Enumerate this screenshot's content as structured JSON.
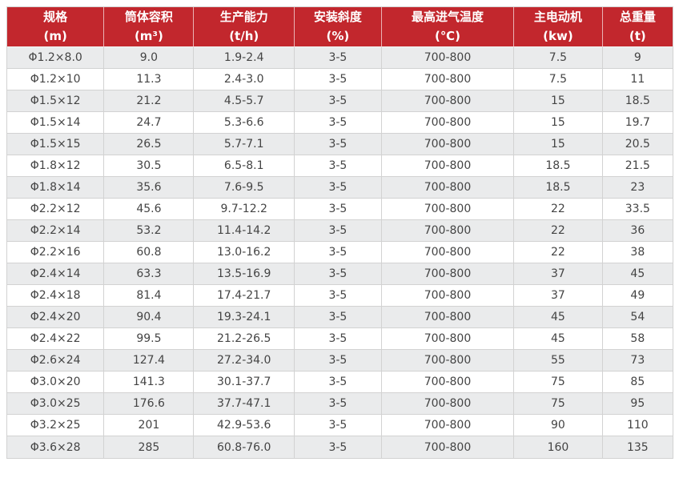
{
  "chart_data": {
    "type": "table",
    "title": "",
    "colors": {
      "header_bg": "#c2272d",
      "header_text": "#ffffff",
      "stripe_bg": "#eaebec",
      "row_bg": "#ffffff",
      "grid": "#d2d2d2",
      "body_text": "#444444"
    },
    "columns": [
      {
        "label": "规格",
        "unit": "(m)"
      },
      {
        "label": "筒体容积",
        "unit": "(m³)"
      },
      {
        "label": "生产能力",
        "unit": "(t/h)"
      },
      {
        "label": "安装斜度",
        "unit": "(%)"
      },
      {
        "label": "最高进气温度",
        "unit": "(℃)"
      },
      {
        "label": "主电动机",
        "unit": "(kw)"
      },
      {
        "label": "总重量",
        "unit": "(t)"
      }
    ],
    "rows": [
      [
        "Φ1.2×8.0",
        "9.0",
        "1.9-2.4",
        "3-5",
        "700-800",
        "7.5",
        "9"
      ],
      [
        "Φ1.2×10",
        "11.3",
        "2.4-3.0",
        "3-5",
        "700-800",
        "7.5",
        "11"
      ],
      [
        "Φ1.5×12",
        "21.2",
        "4.5-5.7",
        "3-5",
        "700-800",
        "15",
        "18.5"
      ],
      [
        "Φ1.5×14",
        "24.7",
        "5.3-6.6",
        "3-5",
        "700-800",
        "15",
        "19.7"
      ],
      [
        "Φ1.5×15",
        "26.5",
        "5.7-7.1",
        "3-5",
        "700-800",
        "15",
        "20.5"
      ],
      [
        "Φ1.8×12",
        "30.5",
        "6.5-8.1",
        "3-5",
        "700-800",
        "18.5",
        "21.5"
      ],
      [
        "Φ1.8×14",
        "35.6",
        "7.6-9.5",
        "3-5",
        "700-800",
        "18.5",
        "23"
      ],
      [
        "Φ2.2×12",
        "45.6",
        "9.7-12.2",
        "3-5",
        "700-800",
        "22",
        "33.5"
      ],
      [
        "Φ2.2×14",
        "53.2",
        "11.4-14.2",
        "3-5",
        "700-800",
        "22",
        "36"
      ],
      [
        "Φ2.2×16",
        "60.8",
        "13.0-16.2",
        "3-5",
        "700-800",
        "22",
        "38"
      ],
      [
        "Φ2.4×14",
        "63.3",
        "13.5-16.9",
        "3-5",
        "700-800",
        "37",
        "45"
      ],
      [
        "Φ2.4×18",
        "81.4",
        "17.4-21.7",
        "3-5",
        "700-800",
        "37",
        "49"
      ],
      [
        "Φ2.4×20",
        "90.4",
        "19.3-24.1",
        "3-5",
        "700-800",
        "45",
        "54"
      ],
      [
        "Φ2.4×22",
        "99.5",
        "21.2-26.5",
        "3-5",
        "700-800",
        "45",
        "58"
      ],
      [
        "Φ2.6×24",
        "127.4",
        "27.2-34.0",
        "3-5",
        "700-800",
        "55",
        "73"
      ],
      [
        "Φ3.0×20",
        "141.3",
        "30.1-37.7",
        "3-5",
        "700-800",
        "75",
        "85"
      ],
      [
        "Φ3.0×25",
        "176.6",
        "37.7-47.1",
        "3-5",
        "700-800",
        "75",
        "95"
      ],
      [
        "Φ3.2×25",
        "201",
        "42.9-53.6",
        "3-5",
        "700-800",
        "90",
        "110"
      ],
      [
        "Φ3.6×28",
        "285",
        "60.8-76.0",
        "3-5",
        "700-800",
        "160",
        "135"
      ]
    ]
  }
}
